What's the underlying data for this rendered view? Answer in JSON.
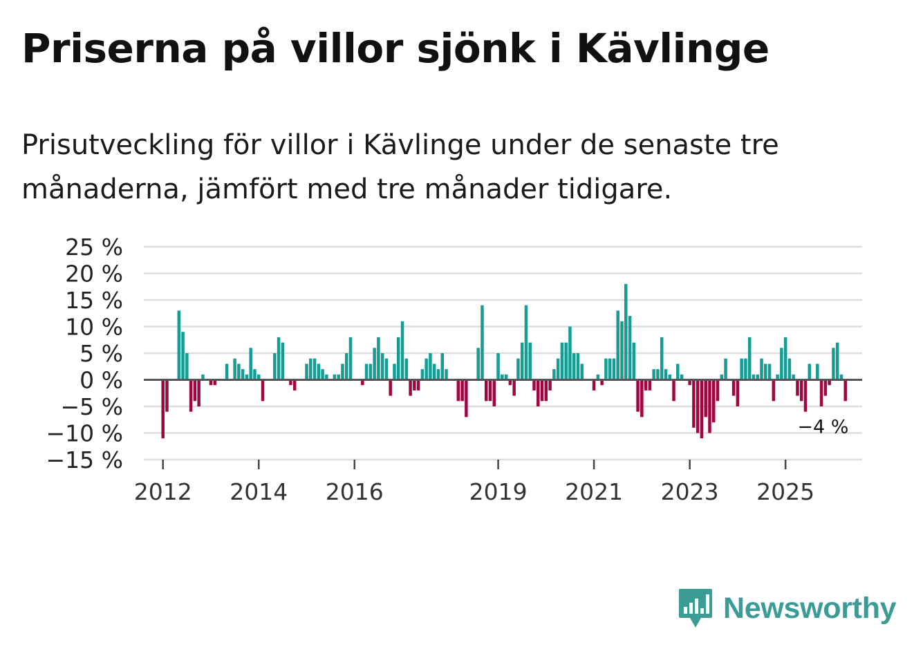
{
  "title": "Priserna på villor sjönk i Kävlinge",
  "subtitle": "Prisutveckling för villor i Kävlinge under de senaste tre månaderna, jämfört med tre månader tidigare.",
  "brand": {
    "name": "Newsworthy",
    "color": "#3a9c95",
    "icon": "newsworthy-chart-bubble-icon"
  },
  "colors": {
    "positive": "#149d95",
    "negative": "#9e0742",
    "grid": "#dddddd",
    "zero_line": "#555555"
  },
  "chart_data": {
    "type": "bar",
    "title": "Priserna på villor sjönk i Kävlinge",
    "xlabel": "",
    "ylabel": "",
    "ylim": [
      -15,
      25
    ],
    "y_ticks": [
      25,
      20,
      15,
      10,
      5,
      0,
      -5,
      -10,
      -15
    ],
    "y_tick_labels": [
      "25 %",
      "20 %",
      "15 %",
      "10 %",
      "5 %",
      "0 %",
      "−5 %",
      "−10 %",
      "−15 %"
    ],
    "x_range": [
      2011.6,
      2026.6
    ],
    "x_ticks": [
      2012,
      2014,
      2016,
      2019,
      2021,
      2023,
      2025
    ],
    "x_tick_labels": [
      "2012",
      "2014",
      "2016",
      "2019",
      "2021",
      "2023",
      "2025"
    ],
    "x_step_years": 0.08333,
    "start": 2012.0,
    "values": [
      -11,
      -6,
      0,
      0,
      13,
      9,
      5,
      -6,
      -4,
      -5,
      1,
      0,
      -1,
      -1,
      0,
      0,
      3,
      0,
      4,
      3,
      2,
      1,
      6,
      2,
      1,
      -4,
      0,
      0,
      5,
      8,
      7,
      0,
      -1,
      -2,
      0,
      0,
      3,
      4,
      4,
      3,
      2,
      1,
      0,
      1,
      1,
      3,
      5,
      8,
      0,
      0,
      -1,
      3,
      3,
      6,
      8,
      5,
      4,
      -3,
      3,
      8,
      11,
      4,
      -3,
      -2,
      -2,
      2,
      4,
      5,
      3,
      2,
      5,
      2,
      0,
      0,
      -4,
      -4,
      -7,
      0,
      0,
      6,
      14,
      -4,
      -4,
      -5,
      5,
      1,
      1,
      -1,
      -3,
      4,
      7,
      14,
      7,
      -2,
      -5,
      -4,
      -4,
      -2,
      2,
      4,
      7,
      7,
      10,
      5,
      5,
      3,
      0,
      0,
      -2,
      1,
      -1,
      4,
      4,
      4,
      13,
      11,
      18,
      12,
      7,
      -6,
      -7,
      -2,
      -2,
      2,
      2,
      8,
      2,
      1,
      -4,
      3,
      1,
      0,
      -1,
      -9,
      -10,
      -11,
      -7,
      -10,
      -8,
      -4,
      1,
      4,
      0,
      -3,
      -5,
      4,
      4,
      8,
      1,
      1,
      4,
      3,
      3,
      -4,
      1,
      6,
      8,
      4,
      1,
      -3,
      -4,
      -6,
      3,
      0,
      3,
      -5,
      -3,
      -1,
      6,
      7,
      1,
      -4
    ],
    "annotations": [
      {
        "text": "−4 %",
        "x": 2025.84,
        "y": -4
      }
    ]
  }
}
